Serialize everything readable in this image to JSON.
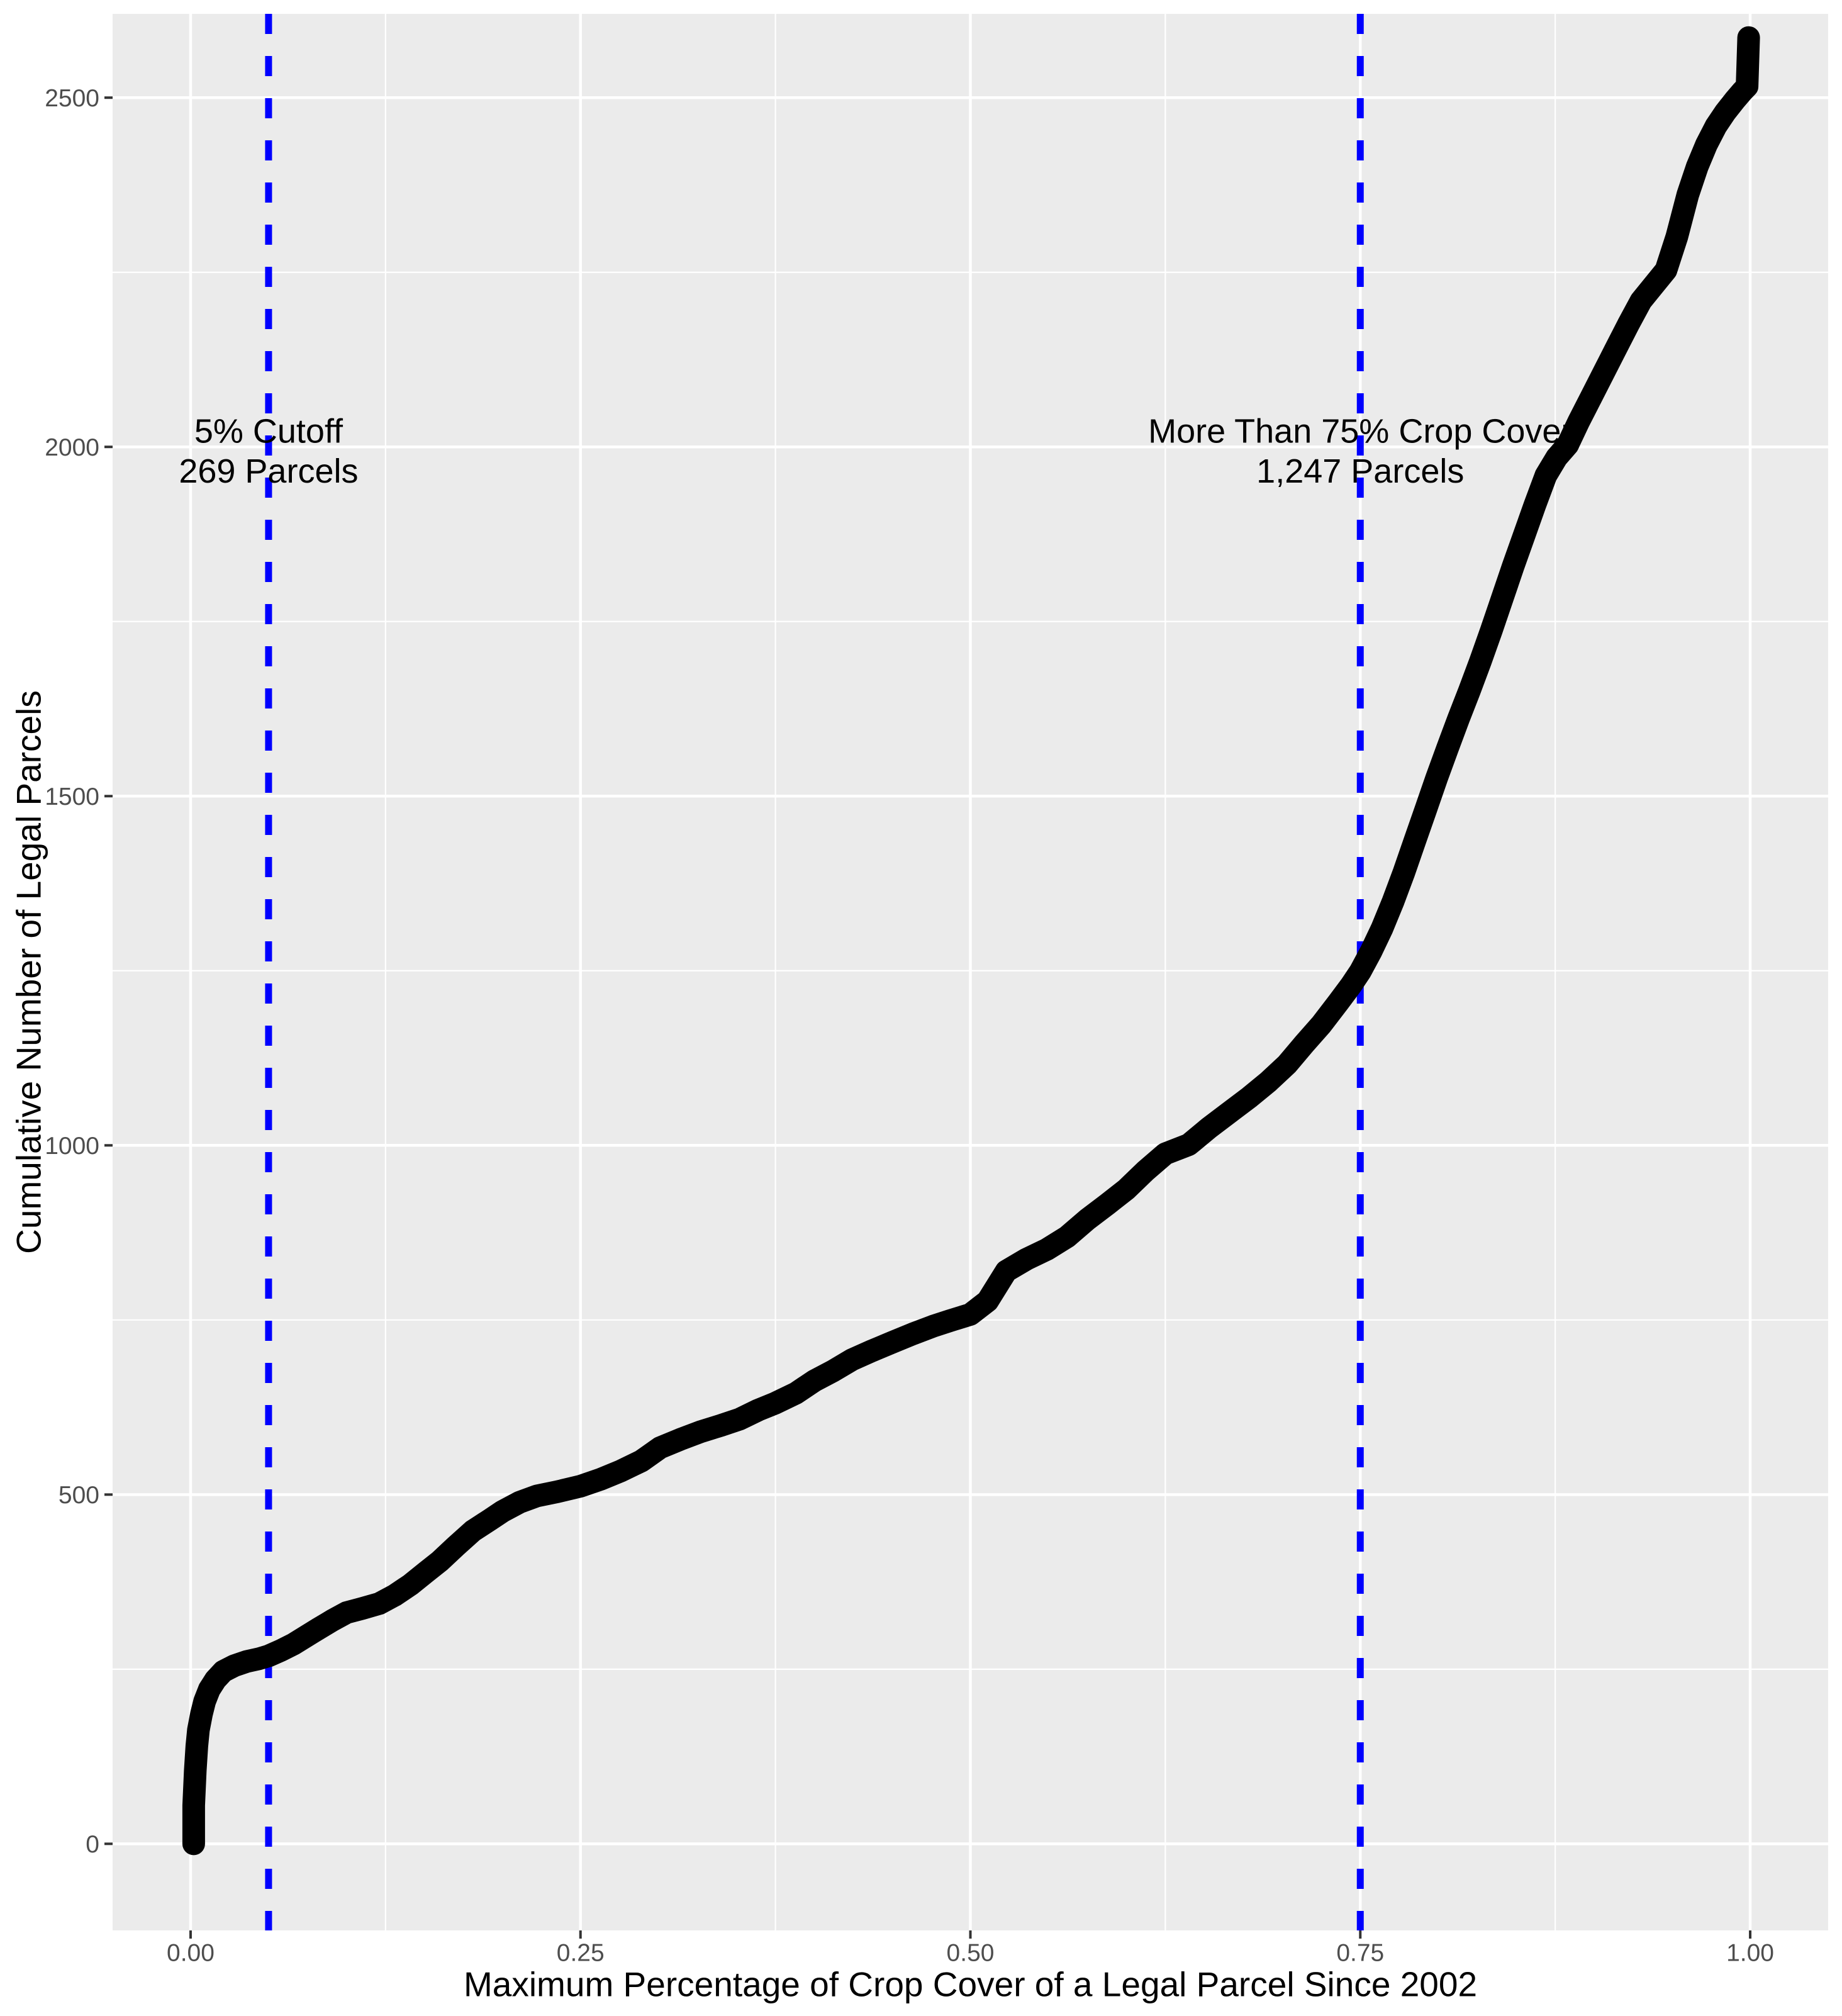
{
  "figure": {
    "background": "#FFFFFF",
    "panel_background": "#EBEBEB",
    "grid_color": "#FFFFFF",
    "tick_mark_color": "#333333",
    "tick_label_color": "#4D4D4D",
    "axis_title_color": "#000000",
    "curve_color": "#000000",
    "cutoff_line_color": "#0000FF"
  },
  "chart_data": {
    "type": "line",
    "title": "",
    "xlabel": "Maximum Percentage of Crop Cover of a Legal Parcel Since 2002",
    "ylabel": "Cumulative Number of Legal Parcels",
    "xlim": [
      -0.05,
      1.05
    ],
    "ylim": [
      -124,
      2620
    ],
    "grid": {
      "major": true,
      "minor": true,
      "legend": "none"
    },
    "x_ticks": [
      0,
      0.25,
      0.5,
      0.75,
      1
    ],
    "x_tick_labels": [
      "0.00",
      "0.25",
      "0.50",
      "0.75",
      "1.00"
    ],
    "x_minor_ticks": [
      0.125,
      0.375,
      0.625,
      0.875
    ],
    "y_ticks": [
      0,
      500,
      1000,
      1500,
      2000,
      2500
    ],
    "y_tick_labels": [
      "0",
      "500",
      "1000",
      "1500",
      "2000",
      "2500"
    ],
    "y_minor_ticks": [
      250,
      750,
      1250,
      1750,
      2250
    ],
    "vlines": [
      {
        "x": 0.05,
        "style": "dashed",
        "color": "#0000FF",
        "label_lines": [
          "5% Cutoff",
          "269 Parcels"
        ],
        "label_y": [
          2023,
          1966
        ]
      },
      {
        "x": 0.75,
        "style": "dashed",
        "color": "#0000FF",
        "label_lines": [
          "More Than 75% Crop Cover",
          "1,247 Parcels"
        ],
        "label_y": [
          2023,
          1966
        ]
      }
    ],
    "series": [
      {
        "name": "cumulative-parcels-curve",
        "color": "#000000",
        "points": [
          [
            0.002,
            0
          ],
          [
            0.002,
            55
          ],
          [
            0.003,
            105
          ],
          [
            0.004,
            140
          ],
          [
            0.005,
            163
          ],
          [
            0.007,
            186
          ],
          [
            0.009,
            204
          ],
          [
            0.012,
            221
          ],
          [
            0.016,
            235
          ],
          [
            0.021,
            247
          ],
          [
            0.028,
            255
          ],
          [
            0.036,
            261
          ],
          [
            0.044,
            265
          ],
          [
            0.05,
            269
          ],
          [
            0.058,
            277
          ],
          [
            0.066,
            286
          ],
          [
            0.074,
            297
          ],
          [
            0.082,
            308
          ],
          [
            0.091,
            320
          ],
          [
            0.1,
            331
          ],
          [
            0.11,
            337
          ],
          [
            0.121,
            344
          ],
          [
            0.131,
            356
          ],
          [
            0.141,
            371
          ],
          [
            0.151,
            389
          ],
          [
            0.16,
            405
          ],
          [
            0.17,
            426
          ],
          [
            0.181,
            448
          ],
          [
            0.192,
            464
          ],
          [
            0.2,
            476
          ],
          [
            0.211,
            489
          ],
          [
            0.222,
            498
          ],
          [
            0.235,
            504
          ],
          [
            0.25,
            512
          ],
          [
            0.263,
            522
          ],
          [
            0.276,
            534
          ],
          [
            0.289,
            548
          ],
          [
            0.301,
            567
          ],
          [
            0.314,
            579
          ],
          [
            0.327,
            590
          ],
          [
            0.34,
            599
          ],
          [
            0.352,
            608
          ],
          [
            0.364,
            621
          ],
          [
            0.375,
            631
          ],
          [
            0.388,
            645
          ],
          [
            0.4,
            663
          ],
          [
            0.412,
            677
          ],
          [
            0.424,
            693
          ],
          [
            0.437,
            706
          ],
          [
            0.45,
            718
          ],
          [
            0.463,
            730
          ],
          [
            0.476,
            741
          ],
          [
            0.487,
            749
          ],
          [
            0.5,
            758
          ],
          [
            0.511,
            777
          ],
          [
            0.523,
            820
          ],
          [
            0.536,
            837
          ],
          [
            0.549,
            851
          ],
          [
            0.562,
            869
          ],
          [
            0.575,
            894
          ],
          [
            0.588,
            916
          ],
          [
            0.6,
            937
          ],
          [
            0.612,
            963
          ],
          [
            0.625,
            988
          ],
          [
            0.64,
            1001
          ],
          [
            0.653,
            1025
          ],
          [
            0.666,
            1047
          ],
          [
            0.679,
            1069
          ],
          [
            0.691,
            1091
          ],
          [
            0.703,
            1116
          ],
          [
            0.714,
            1145
          ],
          [
            0.725,
            1173
          ],
          [
            0.736,
            1205
          ],
          [
            0.744,
            1229
          ],
          [
            0.75,
            1249
          ],
          [
            0.757,
            1278
          ],
          [
            0.764,
            1311
          ],
          [
            0.771,
            1349
          ],
          [
            0.778,
            1391
          ],
          [
            0.785,
            1436
          ],
          [
            0.792,
            1481
          ],
          [
            0.799,
            1526
          ],
          [
            0.806,
            1569
          ],
          [
            0.813,
            1611
          ],
          [
            0.82,
            1651
          ],
          [
            0.827,
            1693
          ],
          [
            0.834,
            1737
          ],
          [
            0.841,
            1783
          ],
          [
            0.848,
            1829
          ],
          [
            0.855,
            1873
          ],
          [
            0.862,
            1917
          ],
          [
            0.869,
            1959
          ],
          [
            0.876,
            1985
          ],
          [
            0.883,
            2003
          ],
          [
            0.89,
            2036
          ],
          [
            0.898,
            2071
          ],
          [
            0.906,
            2106
          ],
          [
            0.914,
            2141
          ],
          [
            0.922,
            2176
          ],
          [
            0.93,
            2209
          ],
          [
            0.938,
            2231
          ],
          [
            0.946,
            2253
          ],
          [
            0.953,
            2301
          ],
          [
            0.96,
            2361
          ],
          [
            0.966,
            2401
          ],
          [
            0.972,
            2433
          ],
          [
            0.978,
            2459
          ],
          [
            0.984,
            2479
          ],
          [
            0.99,
            2496
          ],
          [
            0.995,
            2509
          ],
          [
            0.998,
            2516
          ],
          [
            0.999,
            2586
          ]
        ]
      }
    ]
  }
}
